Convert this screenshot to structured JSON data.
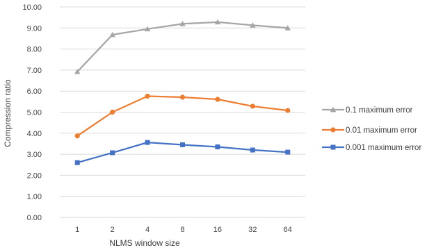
{
  "chart_data": {
    "type": "line",
    "title": "",
    "xlabel": "NLMS window size",
    "ylabel": "Compression ratio",
    "categories": [
      "1",
      "2",
      "4",
      "8",
      "16",
      "32",
      "64"
    ],
    "ylim": [
      0,
      10
    ],
    "ytick_labels": [
      "0.00",
      "1.00",
      "2.00",
      "3.00",
      "4.00",
      "5.00",
      "6.00",
      "7.00",
      "8.00",
      "9.00",
      "10.00"
    ],
    "grid": "horizontal",
    "legend_position": "right",
    "series": [
      {
        "name": "0.1 maximum error",
        "color": "#a5a5a5",
        "marker": "triangle",
        "values": [
          6.92,
          8.68,
          8.95,
          9.2,
          9.28,
          9.13,
          9.0
        ]
      },
      {
        "name": "0.01 maximum error",
        "color": "#ed7d31",
        "marker": "circle",
        "values": [
          3.87,
          5.0,
          5.76,
          5.71,
          5.61,
          5.28,
          5.08
        ]
      },
      {
        "name": "0.001 maximum error",
        "color": "#4472c4",
        "marker": "square",
        "values": [
          2.6,
          3.07,
          3.56,
          3.45,
          3.35,
          3.2,
          3.1
        ]
      }
    ]
  }
}
